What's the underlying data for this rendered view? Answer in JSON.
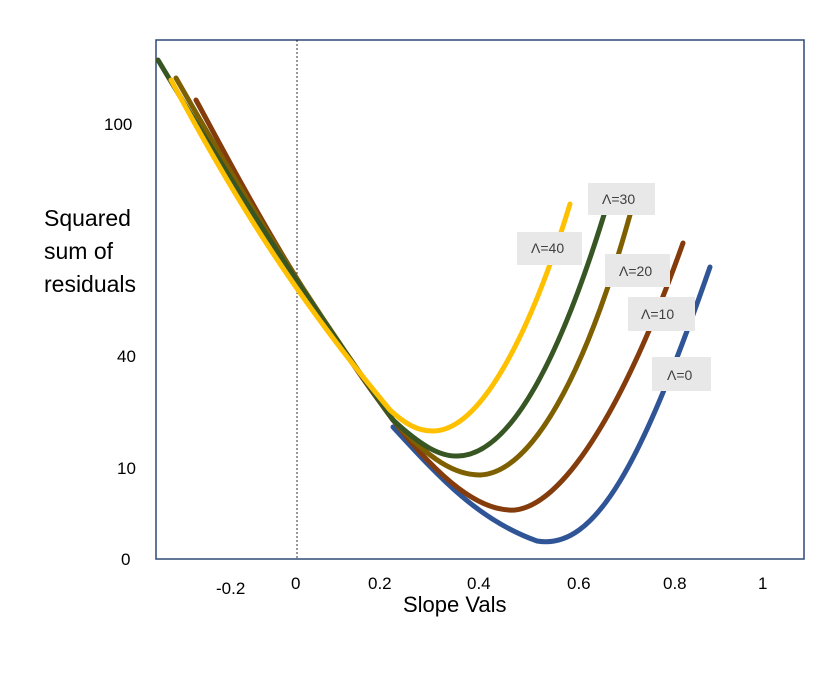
{
  "chart_data": {
    "type": "line",
    "title": "",
    "xlabel": "Slope Vals",
    "ylabel_lines": [
      "Squared",
      "sum of",
      "residuals"
    ],
    "x_ticks": [
      "-0.2",
      "0",
      "0.2",
      "0.4",
      "0.6",
      "0.8",
      "1"
    ],
    "y_ticks": [
      "0",
      "10",
      "40",
      "100"
    ],
    "xlim": [
      -0.3,
      1.07
    ],
    "series": [
      {
        "name": "Λ=0",
        "color": "#2F5597",
        "x": [
          0.2,
          0.3,
          0.4,
          0.45,
          0.51,
          0.57,
          0.65,
          0.7,
          0.75,
          0.8,
          0.85,
          0.88
        ],
        "y": [
          27,
          17,
          7.5,
          3.8,
          2.5,
          4,
          10.5,
          17.5,
          27,
          40,
          54,
          62
        ]
      },
      {
        "name": "Λ=10",
        "color": "#843C0C",
        "x": [
          -0.27,
          -0.1,
          0.0,
          0.1,
          0.2,
          0.3,
          0.4,
          0.47,
          0.55,
          0.65,
          0.75,
          0.82
        ],
        "y": [
          99,
          76,
          63,
          52,
          38,
          22,
          11.5,
          9,
          12,
          27,
          48,
          64
        ]
      },
      {
        "name": "Λ=20",
        "color": "#7F6000",
        "x": [
          -0.3,
          -0.1,
          0.0,
          0.1,
          0.2,
          0.3,
          0.4,
          0.5,
          0.6,
          0.7
        ],
        "y": [
          104,
          75,
          62,
          50,
          36,
          22,
          15,
          20,
          39,
          70
        ]
      },
      {
        "name": "Λ=30",
        "color": "#375623",
        "x": [
          -0.34,
          -0.2,
          0.0,
          0.1,
          0.2,
          0.3,
          0.35,
          0.4,
          0.5,
          0.6,
          0.66
        ],
        "y": [
          108,
          90,
          66,
          50,
          35,
          21,
          20,
          21,
          35,
          60,
          73
        ]
      },
      {
        "name": "Λ=40",
        "color": "#FFC000",
        "x": [
          -0.3,
          -0.2,
          0.0,
          0.1,
          0.2,
          0.3,
          0.35,
          0.4,
          0.5,
          0.58
        ],
        "y": [
          104,
          85,
          61,
          47,
          33,
          24,
          25,
          33,
          52,
          70
        ]
      }
    ],
    "labels": [
      "Λ=0",
      "Λ=10",
      "Λ=20",
      "Λ=30",
      "Λ=40"
    ]
  }
}
